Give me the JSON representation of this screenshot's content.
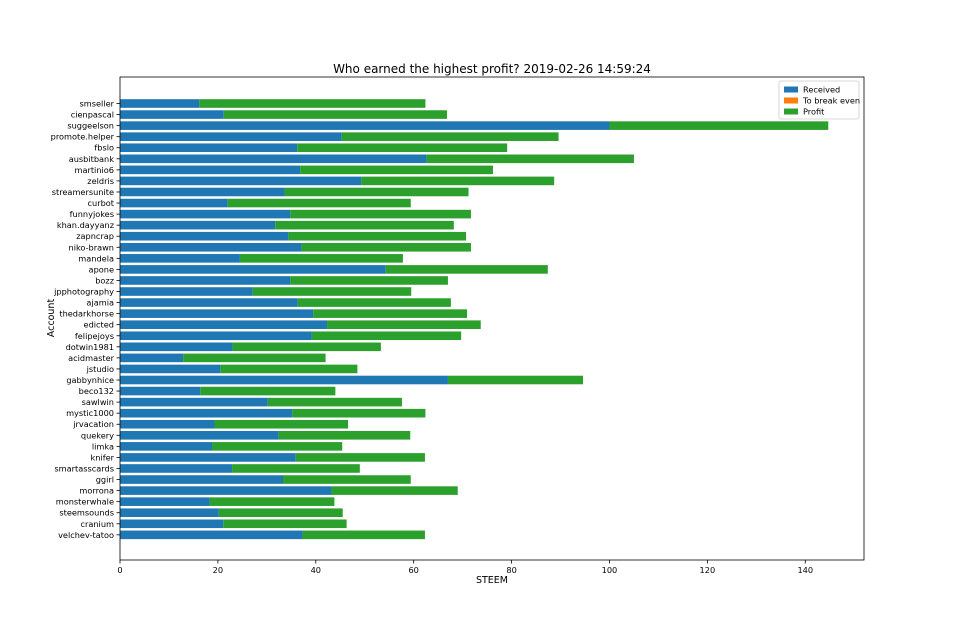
{
  "chart_data": {
    "type": "bar",
    "orientation": "horizontal",
    "stacked": true,
    "title": "Who earned the highest profit? 2019-02-26 14:59:24",
    "xlabel": "STEEM",
    "ylabel": "Account",
    "xlim": [
      0,
      152
    ],
    "xticks": [
      0,
      20,
      40,
      60,
      80,
      100,
      120,
      140
    ],
    "grid": false,
    "legend_position": "top-right",
    "categories": [
      "smseller",
      "cienpascal",
      "suggeelson",
      "promote.helper",
      "fbslo",
      "ausbitbank",
      "martinio6",
      "zeldris",
      "streamersunite",
      "curbot",
      "funnyjokes",
      "khan.dayyanz",
      "zapncrap",
      "niko-brawn",
      "mandela",
      "apone",
      "bozz",
      "jpphotography",
      "ajamia",
      "thedarkhorse",
      "edicted",
      "felipejoys",
      "dotwin1981",
      "acidmaster",
      "jstudio",
      "gabbynhice",
      "beco132",
      "sawlwin",
      "mystic1000",
      "jrvacation",
      "quekery",
      "limka",
      "knifer",
      "smartasscards",
      "ggirl",
      "morrona",
      "monsterwhale",
      "steemsounds",
      "cranium",
      "velchev-tatoo"
    ],
    "series": [
      {
        "name": "Received",
        "color": "#1f77b4",
        "values": [
          16.2,
          21.2,
          100.0,
          45.3,
          36.2,
          62.6,
          36.8,
          49.3,
          33.6,
          22.0,
          34.8,
          31.7,
          34.4,
          37.1,
          24.5,
          54.3,
          34.8,
          27.1,
          36.3,
          39.5,
          42.3,
          39.2,
          23.0,
          12.9,
          20.5,
          67.0,
          16.4,
          30.2,
          35.2,
          19.3,
          32.4,
          18.8,
          35.9,
          22.9,
          33.3,
          43.2,
          18.3,
          20.2,
          21.1,
          37.3
        ]
      },
      {
        "name": "To break even",
        "color": "#ff7f0e",
        "values": [
          0,
          0,
          0,
          0,
          0,
          0,
          0,
          0,
          0,
          0,
          0,
          0,
          0,
          0,
          0,
          0,
          0,
          0,
          0,
          0,
          0,
          0,
          0,
          0,
          0,
          0,
          0,
          0,
          0,
          0,
          0,
          0,
          0,
          0,
          0,
          0,
          0,
          0,
          0,
          0
        ]
      },
      {
        "name": "Profit",
        "color": "#2ca02c",
        "values": [
          46.2,
          45.6,
          44.7,
          44.3,
          42.9,
          42.4,
          39.4,
          39.4,
          37.6,
          37.4,
          36.9,
          36.5,
          36.3,
          34.6,
          33.3,
          33.1,
          32.2,
          32.4,
          31.3,
          31.4,
          31.4,
          30.5,
          30.3,
          29.1,
          28.0,
          27.6,
          27.6,
          27.4,
          27.2,
          27.3,
          26.9,
          26.6,
          26.4,
          26.1,
          26.1,
          25.8,
          25.5,
          25.3,
          25.2,
          25.0
        ]
      }
    ]
  }
}
